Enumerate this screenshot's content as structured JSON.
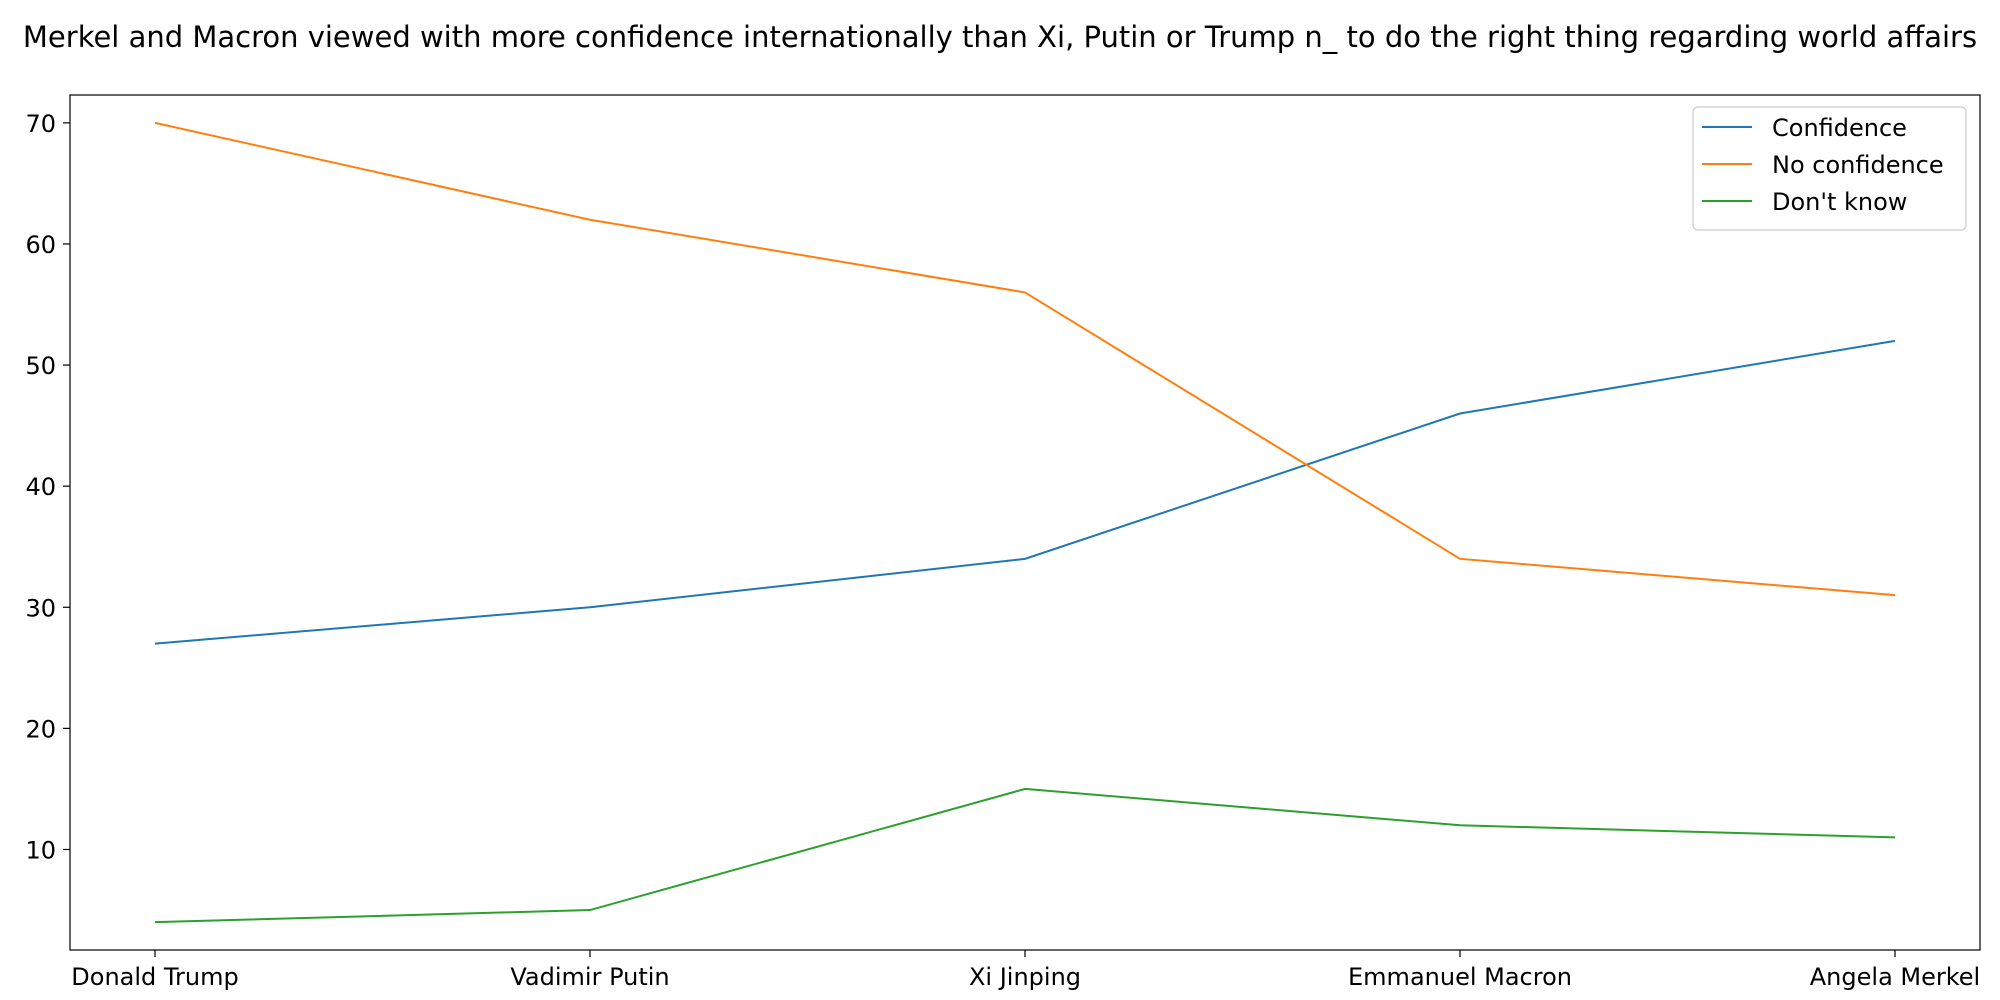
{
  "chart_data": {
    "type": "line",
    "title": "Merkel and Macron viewed with more confidence internationally than Xi, Putin or Trump n_ to do the right thing regarding world affairs",
    "xlabel": "",
    "ylabel": "",
    "categories": [
      "Donald Trump",
      "Vadimir Putin",
      "Xi Jinping",
      "Emmanuel Macron",
      "Angela Merkel"
    ],
    "series": [
      {
        "name": "Confidence",
        "color": "#1f77b4",
        "values": [
          27,
          30,
          34,
          46,
          52
        ]
      },
      {
        "name": "No confidence",
        "color": "#ff7f0e",
        "values": [
          70,
          62,
          56,
          34,
          31
        ]
      },
      {
        "name": "Don't know",
        "color": "#2ca02c",
        "values": [
          4,
          5,
          15,
          12,
          11
        ]
      }
    ],
    "ylim": [
      1.7,
      72.3
    ],
    "yticks": [
      10,
      20,
      30,
      40,
      50,
      60,
      70
    ],
    "grid": false,
    "legend": "top-right"
  }
}
